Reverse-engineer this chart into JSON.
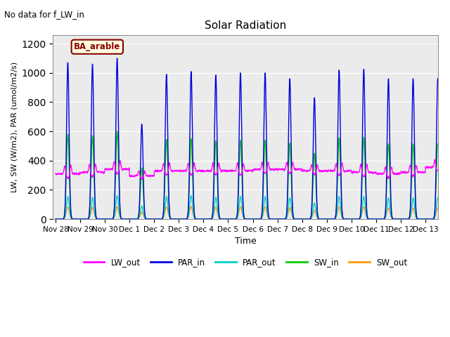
{
  "title": "Solar Radiation",
  "note": "No data for f_LW_in",
  "legend_label": "BA_arable",
  "ylabel": "LW, SW (W/m2), PAR (umol/m2/s)",
  "xlabel": "Time",
  "ylim": [
    0,
    1260
  ],
  "yticks": [
    0,
    200,
    400,
    600,
    800,
    1000,
    1200
  ],
  "background_color": "#ebebeb",
  "series_colors": {
    "LW_out": "#ff00ff",
    "PAR_in": "#0000dd",
    "PAR_out": "#00cccc",
    "SW_in": "#00cc00",
    "SW_out": "#ff9900"
  },
  "par_in_peaks": [
    1070,
    1060,
    1100,
    650,
    990,
    1010,
    985,
    1000,
    1000,
    960,
    830,
    1020,
    1025,
    960,
    960,
    960
  ],
  "sw_in_peaks": [
    580,
    570,
    600,
    350,
    545,
    550,
    535,
    540,
    540,
    520,
    450,
    555,
    560,
    515,
    515,
    515
  ],
  "par_out_peaks": [
    155,
    150,
    160,
    90,
    155,
    160,
    150,
    155,
    155,
    145,
    110,
    155,
    155,
    145,
    145,
    145
  ],
  "sw_out_peaks": [
    82,
    80,
    84,
    48,
    83,
    85,
    82,
    83,
    83,
    78,
    58,
    83,
    83,
    77,
    77,
    77
  ],
  "tick_labels": [
    "Nov 28",
    "Nov 29",
    "Nov 30",
    "Dec 1",
    "Dec 2",
    "Dec 3",
    "Dec 4",
    "Dec 5",
    "Dec 6",
    "Dec 7",
    "Dec 8",
    "Dec 9",
    "Dec 10",
    "Dec 11",
    "Dec 12",
    "Dec 13"
  ],
  "figsize": [
    6.4,
    4.8
  ],
  "dpi": 100
}
